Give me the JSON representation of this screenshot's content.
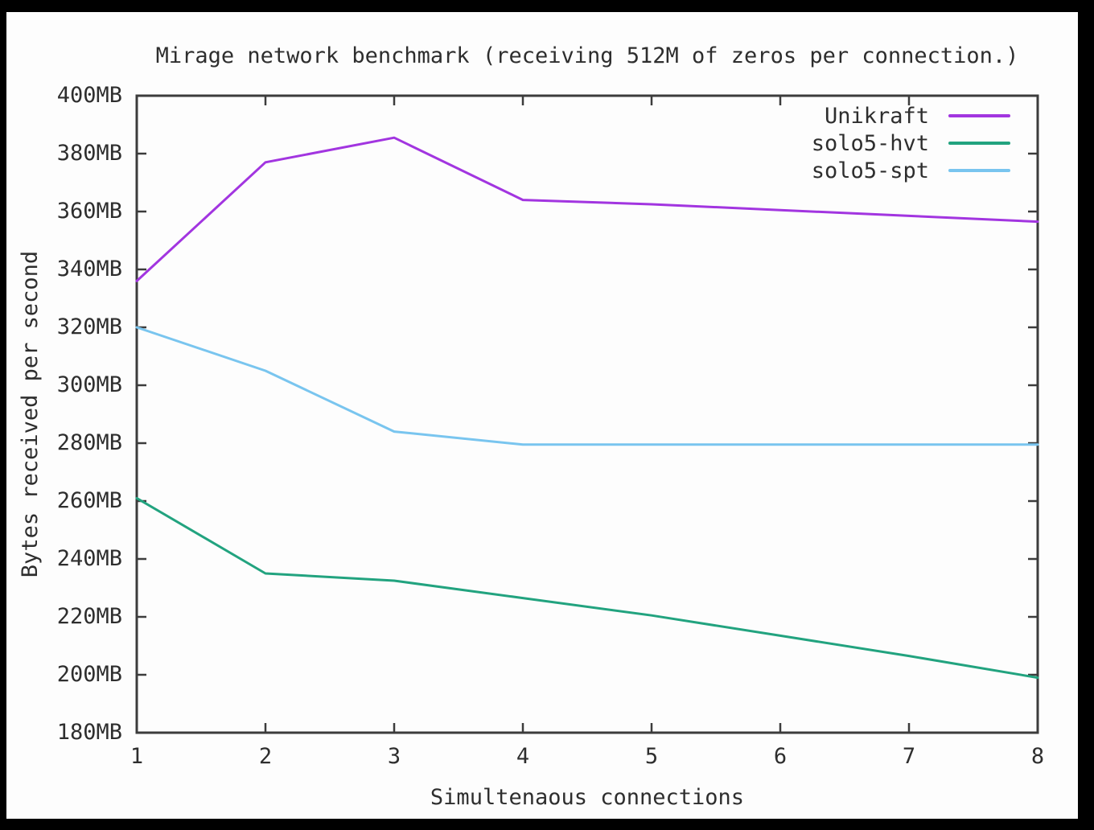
{
  "palette": {
    "page_background": "#000000",
    "canvas_background": "#fdfdfd",
    "axis_color": "#3c3c3c",
    "text_color": "#2e2e2e"
  },
  "chart_data": {
    "type": "line",
    "title": "Mirage network benchmark (receiving 512M of zeros per connection.)",
    "xlabel": "Simultenaous connections",
    "ylabel": "Bytes received per second",
    "xlim": [
      1,
      8
    ],
    "ylim": [
      180,
      400
    ],
    "grid": false,
    "legend_position": "top-right-inside",
    "units": "MB per second",
    "x": [
      1,
      2,
      3,
      4,
      5,
      6,
      7,
      8
    ],
    "xticks": [
      {
        "value": 1,
        "label": "1"
      },
      {
        "value": 2,
        "label": "2"
      },
      {
        "value": 3,
        "label": "3"
      },
      {
        "value": 4,
        "label": "4"
      },
      {
        "value": 5,
        "label": "5"
      },
      {
        "value": 6,
        "label": "6"
      },
      {
        "value": 7,
        "label": "7"
      },
      {
        "value": 8,
        "label": "8"
      }
    ],
    "yticks": [
      {
        "value": 180,
        "label": "180MB"
      },
      {
        "value": 200,
        "label": "200MB"
      },
      {
        "value": 220,
        "label": "220MB"
      },
      {
        "value": 240,
        "label": "240MB"
      },
      {
        "value": 260,
        "label": "260MB"
      },
      {
        "value": 280,
        "label": "280MB"
      },
      {
        "value": 300,
        "label": "300MB"
      },
      {
        "value": 320,
        "label": "320MB"
      },
      {
        "value": 340,
        "label": "340MB"
      },
      {
        "value": 360,
        "label": "360MB"
      },
      {
        "value": 380,
        "label": "380MB"
      },
      {
        "value": 400,
        "label": "400MB"
      }
    ],
    "series": [
      {
        "name": "Unikraft",
        "color": "#a235e0",
        "values": [
          336,
          377,
          385.5,
          364,
          362.5,
          360.5,
          358.5,
          356.5
        ]
      },
      {
        "name": "solo5-hvt",
        "color": "#22a37f",
        "values": [
          261,
          235,
          232.5,
          226.5,
          220.5,
          213.5,
          206.5,
          199
        ]
      },
      {
        "name": "solo5-spt",
        "color": "#79c5ef",
        "values": [
          320,
          305,
          284,
          279.5,
          279.5,
          279.5,
          279.5,
          279.5
        ]
      }
    ]
  }
}
